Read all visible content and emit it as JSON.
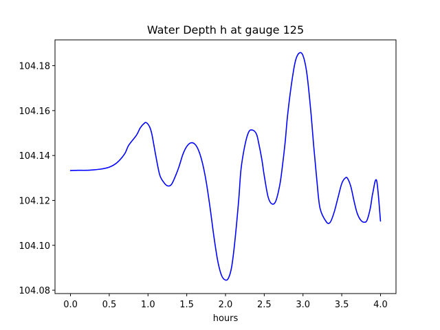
{
  "chart_data": {
    "type": "line",
    "title": "Water Depth h at gauge 125",
    "xlabel": "hours",
    "ylabel": "",
    "xlim": [
      -0.2,
      4.2
    ],
    "ylim": [
      104.0785,
      104.1915
    ],
    "x_ticks": [
      0.0,
      0.5,
      1.0,
      1.5,
      2.0,
      2.5,
      3.0,
      3.5,
      4.0
    ],
    "x_tick_labels": [
      "0.0",
      "0.5",
      "1.0",
      "1.5",
      "2.0",
      "2.5",
      "3.0",
      "3.5",
      "4.0"
    ],
    "y_ticks": [
      104.08,
      104.1,
      104.12,
      104.14,
      104.16,
      104.18
    ],
    "y_tick_labels": [
      "104.08",
      "104.10",
      "104.12",
      "104.14",
      "104.16",
      "104.18"
    ],
    "grid": false,
    "series": [
      {
        "color": "#0000ff",
        "x": [
          0.0,
          0.1,
          0.2,
          0.3,
          0.4,
          0.5,
          0.6,
          0.7,
          0.75,
          0.85,
          0.9,
          0.95,
          0.98,
          1.02,
          1.05,
          1.1,
          1.15,
          1.2,
          1.25,
          1.3,
          1.35,
          1.4,
          1.45,
          1.5,
          1.55,
          1.6,
          1.65,
          1.7,
          1.75,
          1.8,
          1.85,
          1.9,
          1.95,
          2.0,
          2.04,
          2.08,
          2.12,
          2.17,
          2.2,
          2.25,
          2.3,
          2.35,
          2.4,
          2.43,
          2.47,
          2.5,
          2.55,
          2.6,
          2.65,
          2.7,
          2.73,
          2.77,
          2.8,
          2.85,
          2.9,
          2.95,
          3.0,
          3.05,
          3.1,
          3.14,
          3.18,
          3.22,
          3.3,
          3.35,
          3.4,
          3.45,
          3.5,
          3.55,
          3.58,
          3.62,
          3.66,
          3.7,
          3.75,
          3.8,
          3.83,
          3.87,
          3.9,
          3.95,
          4.0
        ],
        "y": [
          104.1333,
          104.1334,
          104.1334,
          104.1336,
          104.134,
          104.1348,
          104.1368,
          104.1408,
          104.1445,
          104.149,
          104.1523,
          104.1543,
          104.1546,
          104.1528,
          104.1495,
          104.14,
          104.1315,
          104.1282,
          104.1265,
          104.127,
          104.1305,
          104.135,
          104.1405,
          104.144,
          104.1456,
          104.1452,
          104.1425,
          104.137,
          104.1285,
          104.117,
          104.104,
          104.093,
          104.0865,
          104.0845,
          104.0855,
          104.0905,
          104.1015,
          104.12,
          104.1338,
          104.1445,
          104.1505,
          104.1513,
          104.1495,
          104.1452,
          104.138,
          104.131,
          104.1215,
          104.1184,
          104.1198,
          104.1268,
          104.134,
          104.146,
          104.1575,
          104.1715,
          104.1818,
          104.1856,
          104.1845,
          104.1765,
          104.16,
          104.1435,
          104.1285,
          104.1165,
          104.1105,
          104.1102,
          104.1145,
          104.121,
          104.1275,
          104.1301,
          104.1295,
          104.1258,
          104.1195,
          104.1142,
          104.111,
          104.1103,
          104.1115,
          104.1168,
          104.1232,
          104.1288,
          104.1108
        ]
      }
    ]
  }
}
